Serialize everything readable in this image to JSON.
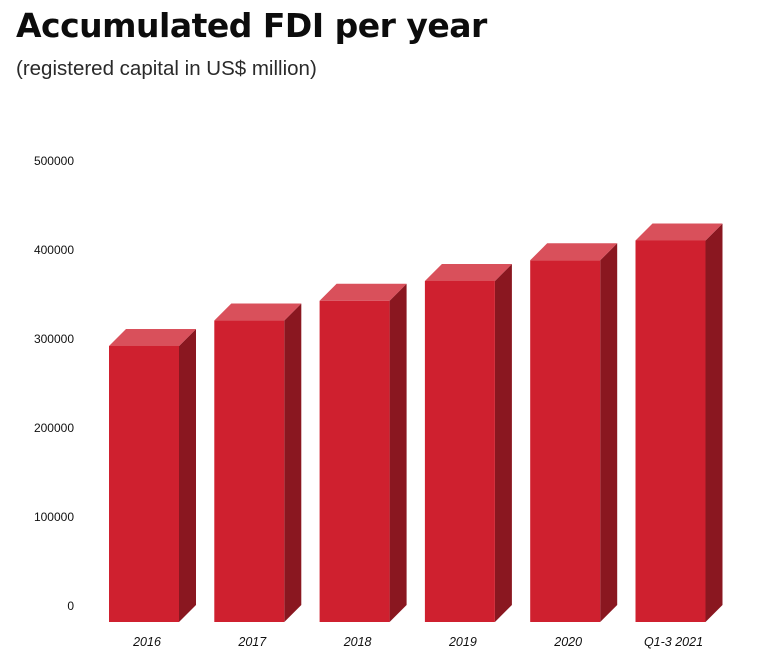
{
  "title": "Accumulated FDI per year",
  "subtitle": "(registered capital in US$ million)",
  "chart_data": {
    "type": "bar",
    "title": "Accumulated FDI per year",
    "subtitle": "(registered capital in US$ million)",
    "xlabel": "",
    "ylabel": "",
    "categories": [
      "2016",
      "2017",
      "2018",
      "2019",
      "2020",
      "Q1-3 2021"
    ],
    "values": [
      293000,
      320000,
      341000,
      362000,
      384000,
      405000
    ],
    "yticks": [
      0,
      100000,
      200000,
      300000,
      400000,
      500000
    ],
    "ylim": [
      0,
      500000
    ],
    "grid": false,
    "legend": "none",
    "colors": {
      "front": "#cf202f",
      "top": "#d9505b",
      "side": "#8a1720"
    }
  }
}
